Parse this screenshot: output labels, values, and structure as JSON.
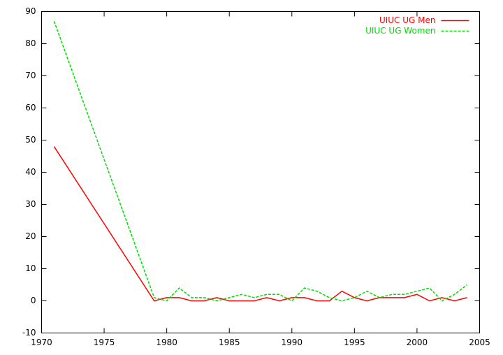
{
  "chart_data": {
    "type": "line",
    "x": [
      1971,
      1979,
      1980,
      1981,
      1982,
      1983,
      1984,
      1985,
      1986,
      1987,
      1988,
      1989,
      1990,
      1991,
      1992,
      1993,
      1994,
      1995,
      1996,
      1997,
      1998,
      1999,
      2000,
      2001,
      2002,
      2003,
      2004
    ],
    "series": [
      {
        "name": "UIUC UG Men",
        "color": "#ff0000",
        "line_style": "solid",
        "values": [
          48,
          0,
          1,
          1,
          0,
          0,
          1,
          0,
          0,
          0,
          1,
          0,
          1,
          1,
          0,
          0,
          3,
          1,
          0,
          1,
          1,
          1,
          2,
          0,
          1,
          0,
          1
        ]
      },
      {
        "name": "UIUC UG Women",
        "color": "#00dd00",
        "line_style": "dashed",
        "values": [
          87,
          1,
          0,
          4,
          1,
          1,
          0,
          1,
          2,
          1,
          2,
          2,
          0,
          4,
          3,
          1,
          0,
          1,
          3,
          1,
          2,
          2,
          3,
          4,
          0,
          2,
          5
        ]
      }
    ],
    "xlim": [
      1970,
      2005
    ],
    "xticks": [
      1970,
      1975,
      1980,
      1985,
      1990,
      1995,
      2000,
      2005
    ],
    "ylim": [
      -10,
      90
    ],
    "yticks": [
      -10,
      0,
      10,
      20,
      30,
      40,
      50,
      60,
      70,
      80,
      90
    ],
    "legend": "top right",
    "grid": false
  }
}
